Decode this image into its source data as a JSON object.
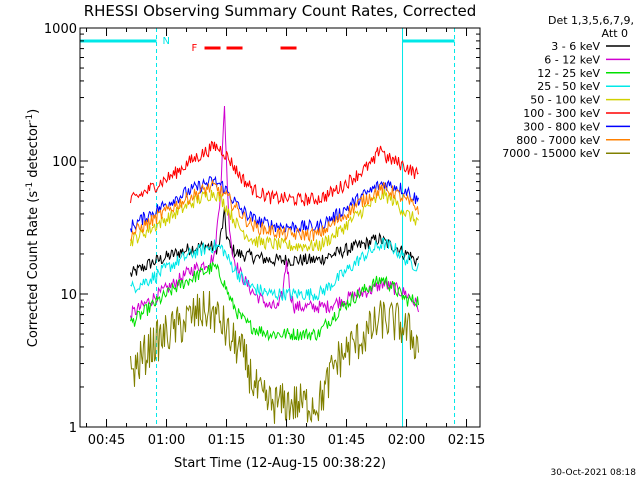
{
  "chart_data": {
    "type": "line",
    "title": "RHESSI Observing Summary Count Rates, Corrected",
    "xlabel": "Start Time (12-Aug-15 00:38:22)",
    "ylabel_main": "Corrected Count Rate (s",
    "ylabel_exp1": "-1",
    "ylabel_mid": " detector",
    "ylabel_exp2": "-1",
    "ylabel_end": ")",
    "yscale": "log",
    "ylim": [
      1,
      1000
    ],
    "xlim_minutes": [
      38.37,
      138.37
    ],
    "x_ticks": [
      {
        "label": "00:45",
        "minutes": 45
      },
      {
        "label": "01:00",
        "minutes": 60
      },
      {
        "label": "01:15",
        "minutes": 75
      },
      {
        "label": "01:30",
        "minutes": 90
      },
      {
        "label": "01:45",
        "minutes": 105
      },
      {
        "label": "02:00",
        "minutes": 120
      },
      {
        "label": "02:15",
        "minutes": 135
      }
    ],
    "y_ticks": [
      {
        "label": "1",
        "value": 1
      },
      {
        "label": "10",
        "value": 10
      },
      {
        "label": "100",
        "value": 100
      },
      {
        "label": "1000",
        "value": 1000
      }
    ],
    "legend_header": [
      "Det 1,3,5,6,7,9,",
      "Att 0"
    ],
    "legend_placement": "right",
    "grid": false,
    "series": [
      {
        "name": "3 - 6 keV",
        "color": "#000000",
        "points": [
          [
            51,
            14
          ],
          [
            56,
            17
          ],
          [
            62,
            20
          ],
          [
            66,
            22
          ],
          [
            70,
            23
          ],
          [
            73,
            22
          ],
          [
            74.5,
            40
          ],
          [
            75,
            28
          ],
          [
            76,
            22
          ],
          [
            78,
            20
          ],
          [
            82,
            19
          ],
          [
            86,
            18
          ],
          [
            90,
            18
          ],
          [
            94,
            18
          ],
          [
            98,
            18
          ],
          [
            102,
            20
          ],
          [
            106,
            22
          ],
          [
            110,
            24
          ],
          [
            113,
            26
          ],
          [
            115,
            24
          ],
          [
            118,
            22
          ],
          [
            119.5,
            20
          ],
          [
            120.5,
            20
          ],
          [
            122,
            18
          ],
          [
            123,
            18
          ]
        ]
      },
      {
        "name": "6 - 12 keV",
        "color": "#d000d0",
        "points": [
          [
            51,
            7
          ],
          [
            56,
            9
          ],
          [
            62,
            12
          ],
          [
            66,
            15
          ],
          [
            70,
            17
          ],
          [
            72,
            19
          ],
          [
            73.5,
            60
          ],
          [
            74.5,
            250
          ],
          [
            75.5,
            40
          ],
          [
            76.5,
            20
          ],
          [
            78,
            15
          ],
          [
            80,
            12
          ],
          [
            82,
            10
          ],
          [
            84,
            9
          ],
          [
            86,
            8
          ],
          [
            88,
            8
          ],
          [
            89,
            10
          ],
          [
            90,
            18
          ],
          [
            91,
            10
          ],
          [
            92,
            8
          ],
          [
            96,
            8
          ],
          [
            100,
            8
          ],
          [
            104,
            9
          ],
          [
            108,
            10
          ],
          [
            112,
            11
          ],
          [
            114,
            12
          ],
          [
            117,
            11
          ],
          [
            120,
            10
          ],
          [
            121.5,
            9
          ],
          [
            123,
            8
          ]
        ]
      },
      {
        "name": "12 - 25 keV",
        "color": "#00e000",
        "points": [
          [
            51,
            6
          ],
          [
            56,
            8
          ],
          [
            62,
            11
          ],
          [
            66,
            13
          ],
          [
            70,
            15
          ],
          [
            72,
            16
          ],
          [
            74,
            13
          ],
          [
            76,
            9
          ],
          [
            78,
            7
          ],
          [
            80,
            6
          ],
          [
            82,
            5.5
          ],
          [
            86,
            5
          ],
          [
            90,
            5
          ],
          [
            94,
            5
          ],
          [
            98,
            5
          ],
          [
            100,
            6
          ],
          [
            104,
            8
          ],
          [
            108,
            10
          ],
          [
            112,
            12
          ],
          [
            114,
            13
          ],
          [
            117,
            11
          ],
          [
            120,
            9
          ],
          [
            123,
            9
          ]
        ]
      },
      {
        "name": "25 - 50 keV",
        "color": "#00e8e8",
        "points": [
          [
            51,
            11
          ],
          [
            56,
            13
          ],
          [
            62,
            17
          ],
          [
            66,
            20
          ],
          [
            70,
            22
          ],
          [
            72,
            23
          ],
          [
            74,
            22
          ],
          [
            76,
            17
          ],
          [
            78,
            14
          ],
          [
            80,
            12
          ],
          [
            82,
            11
          ],
          [
            84,
            10.5
          ],
          [
            86,
            10
          ],
          [
            90,
            10
          ],
          [
            94,
            10
          ],
          [
            98,
            10
          ],
          [
            100,
            11
          ],
          [
            104,
            14
          ],
          [
            108,
            18
          ],
          [
            112,
            22
          ],
          [
            114,
            24
          ],
          [
            117,
            22
          ],
          [
            120,
            18
          ],
          [
            123,
            16
          ]
        ]
      },
      {
        "name": "50 - 100 keV",
        "color": "#d0d000",
        "points": [
          [
            51,
            25
          ],
          [
            56,
            31
          ],
          [
            62,
            40
          ],
          [
            66,
            48
          ],
          [
            70,
            55
          ],
          [
            72,
            58
          ],
          [
            74,
            50
          ],
          [
            76,
            40
          ],
          [
            78,
            32
          ],
          [
            80,
            28
          ],
          [
            82,
            25
          ],
          [
            86,
            24
          ],
          [
            90,
            23
          ],
          [
            94,
            23
          ],
          [
            98,
            23
          ],
          [
            100,
            25
          ],
          [
            104,
            31
          ],
          [
            108,
            40
          ],
          [
            112,
            50
          ],
          [
            114,
            56
          ],
          [
            117,
            50
          ],
          [
            120,
            40
          ],
          [
            123,
            35
          ]
        ]
      },
      {
        "name": "100 - 300 keV",
        "color": "#ff0000",
        "points": [
          [
            51,
            50
          ],
          [
            56,
            62
          ],
          [
            62,
            80
          ],
          [
            66,
            100
          ],
          [
            70,
            118
          ],
          [
            72,
            130
          ],
          [
            74,
            120
          ],
          [
            76,
            100
          ],
          [
            78,
            80
          ],
          [
            80,
            68
          ],
          [
            82,
            60
          ],
          [
            86,
            53
          ],
          [
            90,
            52
          ],
          [
            94,
            51
          ],
          [
            98,
            52
          ],
          [
            100,
            55
          ],
          [
            104,
            65
          ],
          [
            108,
            80
          ],
          [
            112,
            100
          ],
          [
            113.5,
            130
          ],
          [
            115,
            105
          ],
          [
            117,
            100
          ],
          [
            120,
            90
          ],
          [
            123,
            78
          ]
        ]
      },
      {
        "name": "300 - 800 keV",
        "color": "#0000ff",
        "points": [
          [
            51,
            32
          ],
          [
            56,
            40
          ],
          [
            62,
            52
          ],
          [
            66,
            60
          ],
          [
            70,
            68
          ],
          [
            72,
            70
          ],
          [
            74,
            65
          ],
          [
            76,
            55
          ],
          [
            78,
            45
          ],
          [
            80,
            40
          ],
          [
            82,
            36
          ],
          [
            86,
            33
          ],
          [
            90,
            32
          ],
          [
            94,
            32
          ],
          [
            98,
            32
          ],
          [
            100,
            35
          ],
          [
            104,
            42
          ],
          [
            108,
            52
          ],
          [
            112,
            62
          ],
          [
            114,
            68
          ],
          [
            117,
            65
          ],
          [
            120,
            60
          ],
          [
            123,
            50
          ]
        ]
      },
      {
        "name": "800 - 7000 keV",
        "color": "#ff8000",
        "points": [
          [
            51,
            28
          ],
          [
            56,
            35
          ],
          [
            62,
            46
          ],
          [
            66,
            54
          ],
          [
            70,
            62
          ],
          [
            72,
            64
          ],
          [
            74,
            58
          ],
          [
            76,
            50
          ],
          [
            78,
            42
          ],
          [
            80,
            36
          ],
          [
            82,
            32
          ],
          [
            86,
            30
          ],
          [
            90,
            28
          ],
          [
            94,
            28
          ],
          [
            98,
            28
          ],
          [
            100,
            31
          ],
          [
            104,
            38
          ],
          [
            108,
            48
          ],
          [
            112,
            57
          ],
          [
            114,
            62
          ],
          [
            117,
            58
          ],
          [
            120,
            50
          ],
          [
            123,
            44
          ]
        ]
      },
      {
        "name": "7000 - 15000 keV",
        "color": "#808000",
        "points": [
          [
            51,
            2.5
          ],
          [
            53,
            3
          ],
          [
            56,
            4
          ],
          [
            60,
            5
          ],
          [
            64,
            6
          ],
          [
            67,
            7
          ],
          [
            70,
            7.5
          ],
          [
            72,
            7
          ],
          [
            74,
            6
          ],
          [
            76,
            4.5
          ],
          [
            78,
            4
          ],
          [
            80,
            3
          ],
          [
            82,
            2
          ],
          [
            84,
            1.6
          ],
          [
            86,
            1.5
          ],
          [
            90,
            1.5
          ],
          [
            94,
            1.5
          ],
          [
            98,
            1.5
          ],
          [
            100,
            2
          ],
          [
            102,
            3
          ],
          [
            106,
            4
          ],
          [
            110,
            5
          ],
          [
            114,
            6.5
          ],
          [
            118,
            6
          ],
          [
            121,
            5
          ],
          [
            123,
            4
          ]
        ]
      }
    ],
    "legend": [
      {
        "label": "3 - 6 keV",
        "color": "#000000"
      },
      {
        "label": "6 - 12 keV",
        "color": "#d000d0"
      },
      {
        "label": "12 - 25 keV",
        "color": "#00e000"
      },
      {
        "label": "25 - 50 keV",
        "color": "#00e8e8"
      },
      {
        "label": "50 - 100 keV",
        "color": "#d0d000"
      },
      {
        "label": "100 - 300 keV",
        "color": "#ff0000"
      },
      {
        "label": "300 - 800 keV",
        "color": "#0000ff"
      },
      {
        "label": "800 - 7000 keV",
        "color": "#ff8000"
      },
      {
        "label": "7000 - 15000 keV",
        "color": "#808000"
      }
    ],
    "annotations": {
      "night_label": "N",
      "flare_label": "F",
      "night_color": "#00e8e8",
      "flare_color": "#ff0000",
      "night_spans_minutes": [
        [
          38.37,
          57.5
        ],
        [
          119,
          132
        ]
      ],
      "night_boundaries_minutes": [
        38.37,
        57.5,
        119,
        132
      ],
      "flare_spans_minutes": [
        [
          69.5,
          73.5
        ],
        [
          75,
          79
        ],
        [
          88.5,
          92.5
        ]
      ]
    }
  },
  "footer_stamp": "30-Oct-2021 08:18"
}
